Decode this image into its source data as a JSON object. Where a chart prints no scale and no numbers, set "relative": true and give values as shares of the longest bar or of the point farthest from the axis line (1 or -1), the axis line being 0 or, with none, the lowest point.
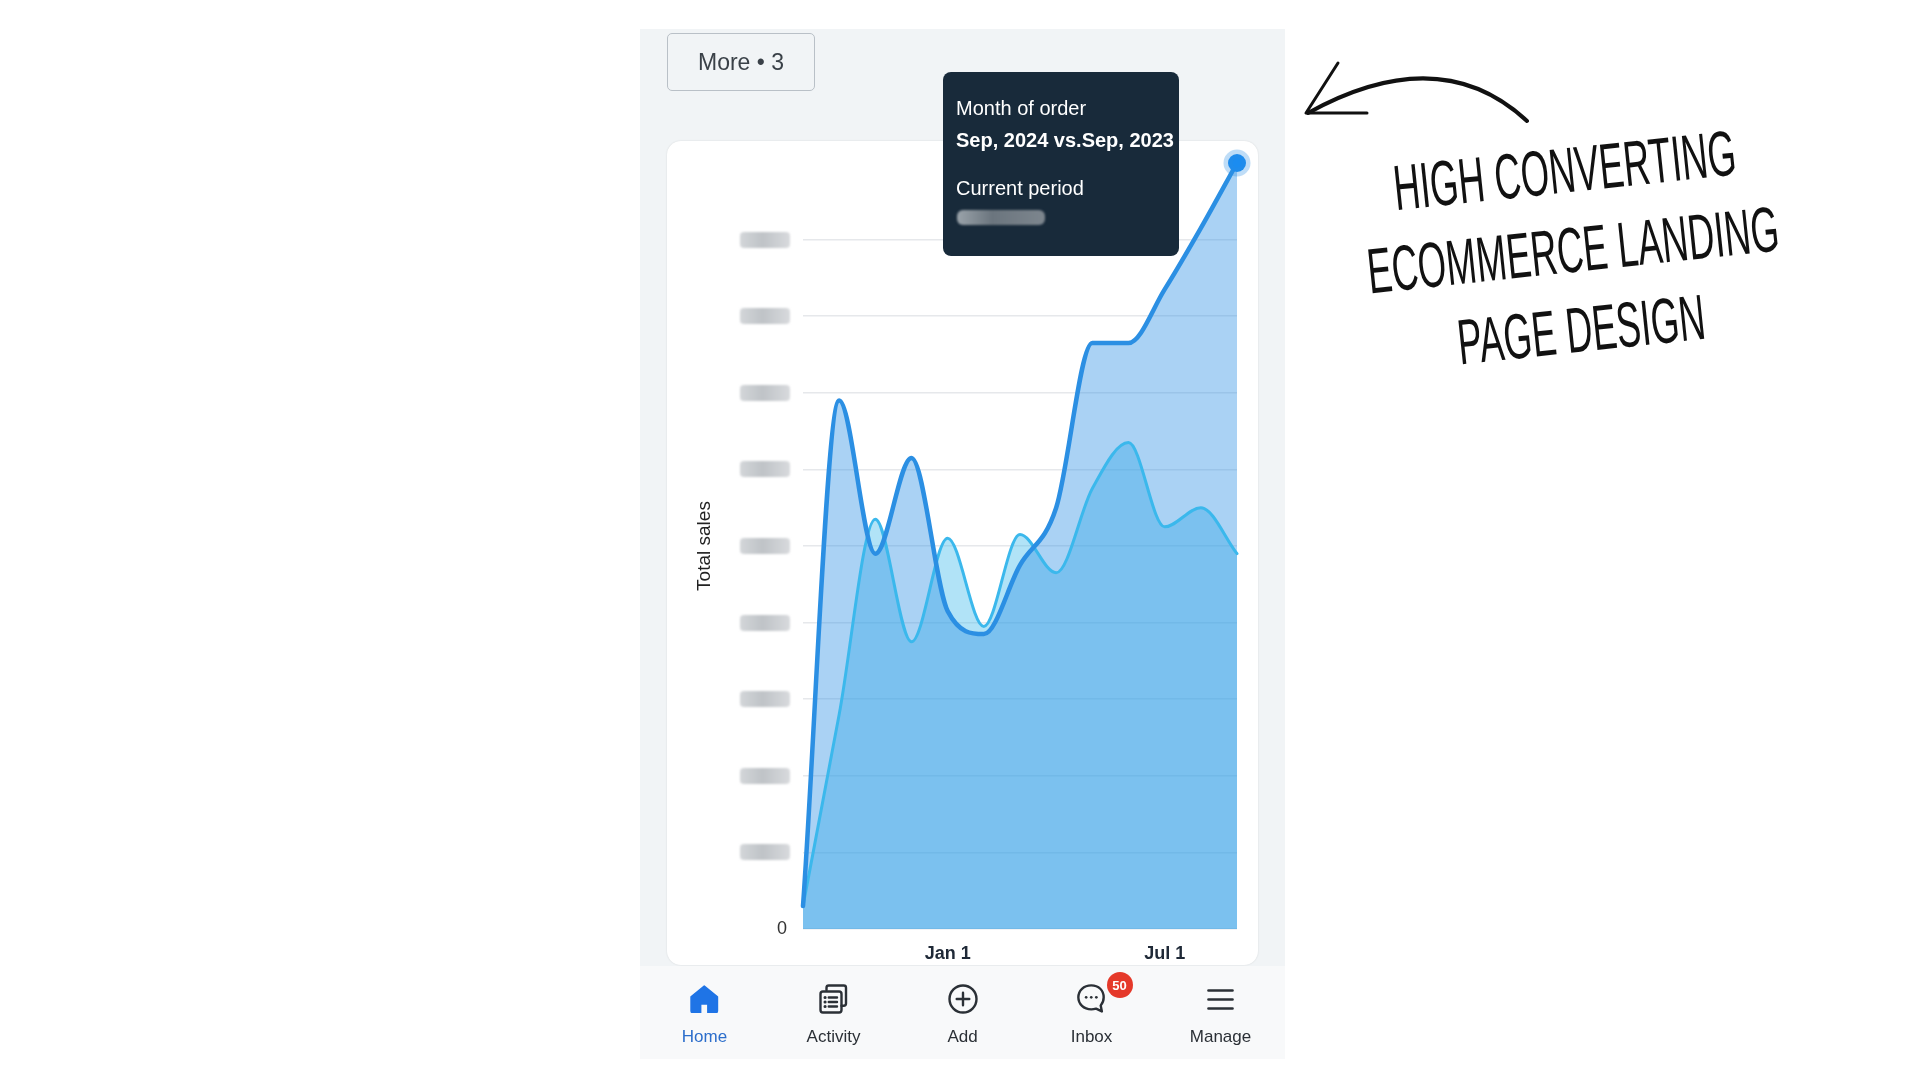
{
  "chart_data": {
    "type": "area",
    "title": "HIGH CONVERTING\nECOMMERCE LANDING\nPAGE DESIGN",
    "ylabel": "Total sales",
    "relative": true,
    "categories": [
      null,
      null,
      null,
      null,
      "Jan 1",
      null,
      null,
      null,
      null,
      null,
      "Jul 1",
      null,
      null
    ],
    "series": [
      {
        "color": "#2b8fe3",
        "values": [
          0.03,
          0.69,
          0.49,
          0.615,
          0.415,
          0.385,
          0.475,
          0.55,
          0.765,
          0.765,
          0.835,
          0.915,
          1
        ]
      },
      {
        "color": "#3bb8ec",
        "values": [
          0.03,
          0.28,
          0.535,
          0.375,
          0.51,
          0.395,
          0.515,
          0.465,
          0.575,
          0.635,
          0.525,
          0.55,
          0.49
        ]
      }
    ],
    "grid": "y",
    "annotations": [
      "More • 3",
      "Month of order",
      "Sep, 2024 vs.Sep, 2023",
      "Current period",
      "Home",
      "Activity",
      "Add",
      "50",
      "Inbox",
      "Manage",
      "0"
    ]
  }
}
